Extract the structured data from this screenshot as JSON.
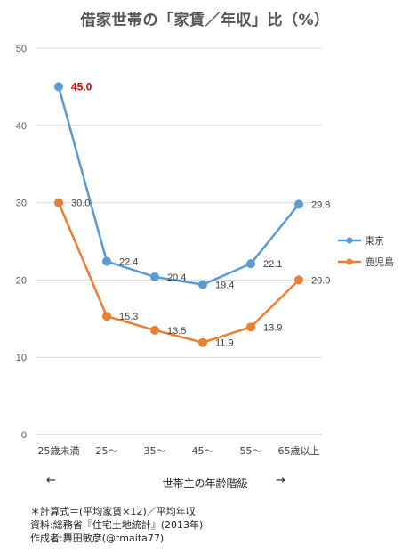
{
  "chart_data": {
    "type": "line",
    "title": "借家世帯の「家賃／年収」比（%）",
    "categories": [
      "25歳未満",
      "25〜",
      "35〜",
      "45〜",
      "55〜",
      "65歳以上"
    ],
    "ylim": [
      0,
      50
    ],
    "yticks": [
      0,
      10,
      20,
      30,
      40,
      50
    ],
    "grid": true,
    "legend_position": "right",
    "xlabel": "世帯主の年齢階級",
    "series": [
      {
        "name": "東京",
        "color": "#5b9bd5",
        "values": [
          45.0,
          22.4,
          20.4,
          19.4,
          22.1,
          29.8
        ],
        "labels": [
          "45.0",
          "22.4",
          "20.4",
          "19.4",
          "22.1",
          "29.8"
        ]
      },
      {
        "name": "鹿児島",
        "color": "#ed7d31",
        "values": [
          30.0,
          15.3,
          13.5,
          11.9,
          13.9,
          20.0
        ],
        "labels": [
          "30.0",
          "15.3",
          "13.5",
          "11.9",
          "13.9",
          "20.0"
        ]
      }
    ],
    "highlight_color": "#e00000"
  },
  "axis_arrows": {
    "left": "←",
    "right": "→"
  },
  "notes": [
    "＊計算式＝(平均家賃×12)／平均年収",
    "資料:総務省『住宅土地統計』(2013年)",
    "作成者:舞田敏彦(@tmaita77)"
  ]
}
